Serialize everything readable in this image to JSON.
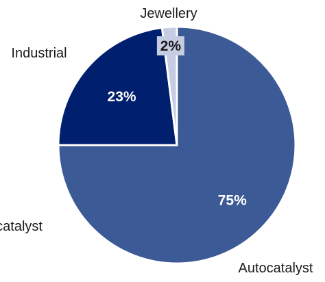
{
  "chart_data": {
    "type": "pie",
    "slices": [
      {
        "label": "Autocatalyst",
        "value": 75,
        "value_label": "75%",
        "color": "#3c5a96",
        "text_color": "#ffffff"
      },
      {
        "label": "Industrial",
        "value": 23,
        "value_label": "23%",
        "color": "#001f6e",
        "text_color": "#ffffff"
      },
      {
        "label": "Jewellery",
        "value": 2,
        "value_label": "2%",
        "color": "#c6cde2",
        "text_color": "#1a1a1a"
      }
    ],
    "start_angle_deg": 0,
    "direction": "clockwise",
    "label_box_for_small_slices": true
  }
}
